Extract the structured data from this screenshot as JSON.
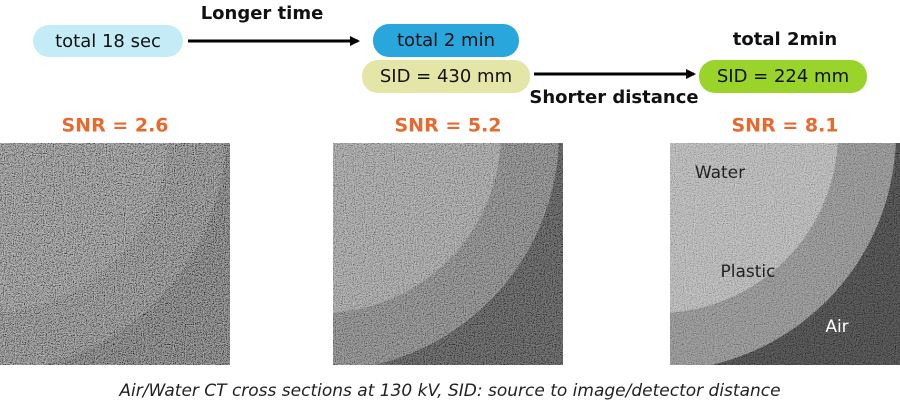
{
  "top": {
    "start": "total 18 sec",
    "arrow1": "Longer time",
    "middle_time": "total 2 min",
    "middle_sid": "SID = 430 mm",
    "arrow2": "Shorter distance",
    "right_time": "total 2min",
    "right_sid": "SID = 224 mm"
  },
  "panels": [
    {
      "snr": "SNR = 2.6"
    },
    {
      "snr": "SNR = 5.2"
    },
    {
      "snr": "SNR = 8.1",
      "labels": [
        "Water",
        "Plastic",
        "Air"
      ]
    }
  ],
  "caption": "Air/Water CT cross sections at 130 kV, SID: source to image/detector distance"
}
